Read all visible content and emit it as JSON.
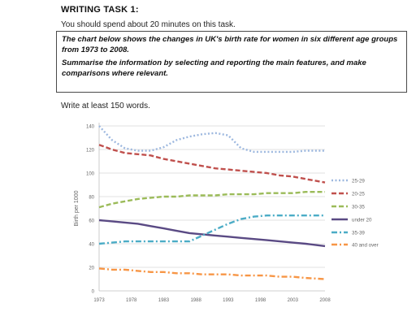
{
  "heading": "WRITING TASK 1:",
  "intro": "You should spend about 20 minutes on this task.",
  "task_prompt": "The chart below shows the changes in UK's birth rate for women in six different age groups from 1973 to 2008.",
  "task_instruction": "Summarise the information by selecting and reporting the main features, and make comparisons where relevant.",
  "word_count_note": "Write at least 150 words.",
  "chart_data": {
    "type": "line",
    "title": "",
    "xlabel": "",
    "ylabel": "Birth per 1000",
    "categories": [
      "1973",
      "1978",
      "1983",
      "1988",
      "1993",
      "1998",
      "2003",
      "2008"
    ],
    "x": [
      1973,
      1975,
      1977,
      1979,
      1981,
      1983,
      1985,
      1987,
      1989,
      1991,
      1993,
      1995,
      1997,
      1999,
      2001,
      2003,
      2005,
      2008
    ],
    "ylim": [
      0,
      140
    ],
    "yticks": [
      0,
      20,
      40,
      60,
      80,
      100,
      120,
      140
    ],
    "grid": true,
    "legend_position": "right",
    "series": [
      {
        "name": "25-29",
        "color": "#9db8df",
        "dash": "2,2.5",
        "values": [
          140,
          128,
          121,
          119,
          119,
          122,
          128,
          131,
          133,
          134,
          132,
          121,
          118,
          118,
          118,
          118,
          119,
          119
        ]
      },
      {
        "name": "20-25",
        "color": "#c0504d",
        "dash": "6,3",
        "values": [
          124,
          120,
          117,
          116,
          115,
          112,
          110,
          108,
          106,
          104,
          103,
          102,
          101,
          100,
          98,
          97,
          95,
          92
        ]
      },
      {
        "name": "30-35",
        "color": "#9bbb59",
        "dash": "6,3",
        "values": [
          71,
          74,
          76,
          78,
          79,
          80,
          80,
          81,
          81,
          81,
          82,
          82,
          82,
          83,
          83,
          83,
          84,
          84
        ]
      },
      {
        "name": "under 20",
        "color": "#5a4a84",
        "dash": "",
        "values": [
          60,
          59,
          58,
          57,
          55,
          53,
          51,
          49,
          48,
          47,
          46,
          45,
          44,
          43,
          42,
          41,
          40,
          38
        ]
      },
      {
        "name": "35-39",
        "color": "#4bacc6",
        "dash": "7,3,2,3",
        "values": [
          40,
          41,
          42,
          42,
          42,
          42,
          42,
          42,
          47,
          52,
          57,
          61,
          63,
          64,
          64,
          64,
          64,
          64
        ]
      },
      {
        "name": "40 and over",
        "color": "#f79646",
        "dash": "7,3,2,3",
        "values": [
          19,
          18,
          18,
          17,
          16,
          16,
          15,
          15,
          14,
          14,
          14,
          13,
          13,
          13,
          12,
          12,
          11,
          10
        ]
      }
    ]
  }
}
